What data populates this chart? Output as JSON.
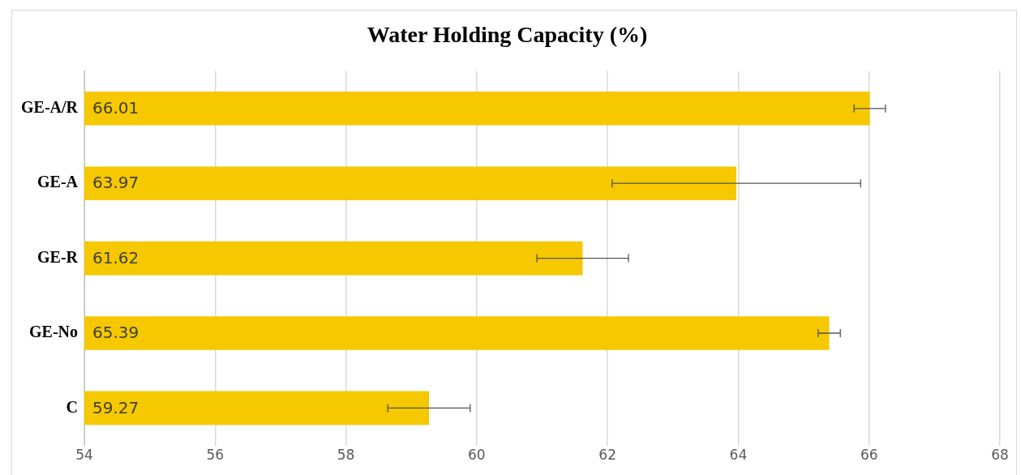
{
  "chart_data": {
    "type": "bar",
    "title": "Water Holding Capacity (%)",
    "orientation": "horizontal",
    "categories": [
      "GE-A/R",
      "GE-A",
      "GE-R",
      "GE-No",
      "C"
    ],
    "values": [
      66.01,
      63.97,
      61.62,
      65.39,
      59.27
    ],
    "errors": [
      0.24,
      1.9,
      0.7,
      0.17,
      0.63
    ],
    "color": "#f5c800",
    "xlim": [
      54,
      68
    ],
    "xticks": [
      54,
      56,
      58,
      60,
      62,
      64,
      66,
      68
    ],
    "grid": "x",
    "data_labels": true,
    "legend": false
  }
}
